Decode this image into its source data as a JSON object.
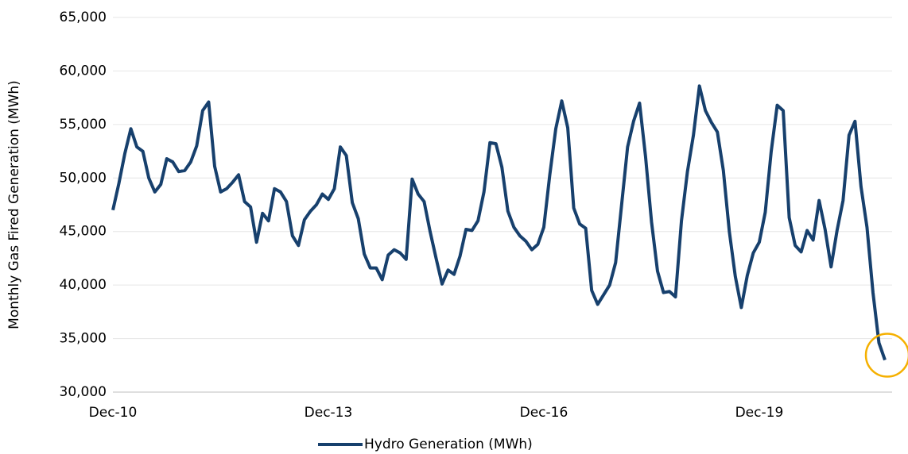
{
  "chart_data": {
    "type": "line",
    "y_label": "Monthly Gas Fired Generation (MWh)",
    "categories": [
      "Dec-10",
      null,
      null,
      null,
      null,
      null,
      null,
      null,
      null,
      null,
      null,
      null,
      null,
      null,
      null,
      null,
      null,
      null,
      null,
      null,
      null,
      null,
      null,
      null,
      null,
      null,
      null,
      null,
      null,
      null,
      null,
      null,
      null,
      null,
      null,
      null,
      "Dec-13",
      null,
      null,
      null,
      null,
      null,
      null,
      null,
      null,
      null,
      null,
      null,
      null,
      null,
      null,
      null,
      null,
      null,
      null,
      null,
      null,
      null,
      null,
      null,
      null,
      null,
      null,
      null,
      null,
      null,
      null,
      null,
      null,
      null,
      null,
      null,
      "Dec-16",
      null,
      null,
      null,
      null,
      null,
      null,
      null,
      null,
      null,
      null,
      null,
      null,
      null,
      null,
      null,
      null,
      null,
      null,
      null,
      null,
      null,
      null,
      null,
      null,
      null,
      null,
      null,
      null,
      null,
      null,
      null,
      null,
      null,
      null,
      null,
      "Dec-19",
      null,
      null,
      null,
      null,
      null,
      null,
      null,
      null,
      null,
      null,
      null,
      null,
      null,
      null,
      null,
      null,
      null,
      null,
      null,
      null,
      null
    ],
    "series": [
      {
        "name": "Hydro Generation (MWh)",
        "color": "#17406d",
        "values": [
          47000,
          49500,
          52300,
          54600,
          52900,
          52500,
          50000,
          48700,
          49400,
          51800,
          51500,
          50600,
          50700,
          51500,
          53000,
          56300,
          57100,
          51100,
          48700,
          49000,
          49600,
          50300,
          47800,
          47300,
          44000,
          46700,
          46000,
          49000,
          48700,
          47800,
          44600,
          43700,
          46100,
          46900,
          47500,
          48500,
          48000,
          49000,
          52900,
          52100,
          47700,
          46200,
          42900,
          41600,
          41600,
          40500,
          42800,
          43300,
          43000,
          42400,
          49900,
          48500,
          47800,
          45000,
          42500,
          40100,
          41400,
          41000,
          42700,
          45200,
          45100,
          46000,
          48700,
          53300,
          53200,
          51000,
          46900,
          45400,
          44600,
          44100,
          43300,
          43800,
          45400,
          50300,
          54600,
          57200,
          54700,
          47200,
          45700,
          45300,
          39500,
          38200,
          39100,
          40000,
          42100,
          47500,
          52900,
          55300,
          57000,
          52000,
          45900,
          41300,
          39300,
          39400,
          38900,
          46000,
          50600,
          54000,
          58600,
          56300,
          55200,
          54300,
          50700,
          45000,
          40800,
          37900,
          40900,
          43000,
          44000,
          46800,
          52500,
          56800,
          56300,
          46300,
          43700,
          43100,
          45100,
          44200,
          47900,
          45200,
          41700,
          45100,
          47900,
          54000,
          55300,
          49200,
          45400,
          39300,
          34600,
          33000
        ]
      }
    ],
    "ylim": [
      30000,
      65000
    ],
    "yticks": [
      {
        "value": 30000,
        "label": "30,000"
      },
      {
        "value": 35000,
        "label": "35,000"
      },
      {
        "value": 40000,
        "label": "40,000"
      },
      {
        "value": 45000,
        "label": "45,000"
      },
      {
        "value": 50000,
        "label": "50,000"
      },
      {
        "value": 55000,
        "label": "55,000"
      },
      {
        "value": 60000,
        "label": "60,000"
      },
      {
        "value": 65000,
        "label": "65,000"
      }
    ],
    "grid": true,
    "legend": "bottom"
  }
}
